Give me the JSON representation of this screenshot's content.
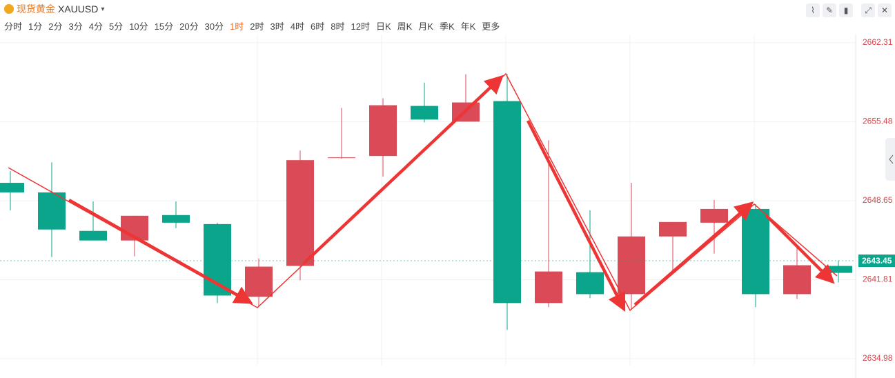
{
  "header": {
    "title": "现货黄金",
    "symbol": "XAUUSD",
    "intervals": [
      {
        "label": "分时"
      },
      {
        "label": "1分"
      },
      {
        "label": "2分"
      },
      {
        "label": "3分"
      },
      {
        "label": "4分"
      },
      {
        "label": "5分"
      },
      {
        "label": "10分"
      },
      {
        "label": "15分"
      },
      {
        "label": "20分"
      },
      {
        "label": "30分"
      },
      {
        "label": "1时",
        "active": true
      },
      {
        "label": "2时"
      },
      {
        "label": "3时"
      },
      {
        "label": "4时"
      },
      {
        "label": "6时"
      },
      {
        "label": "8时"
      },
      {
        "label": "12时"
      },
      {
        "label": "日K"
      },
      {
        "label": "周K"
      },
      {
        "label": "月K"
      },
      {
        "label": "季K"
      },
      {
        "label": "年K"
      },
      {
        "label": "更多"
      }
    ]
  },
  "chart_data": {
    "type": "candlestick",
    "open": [
      2650.19,
      2649.36,
      2646.03,
      2645.2,
      2647.4,
      2646.62,
      2640.33,
      2643.0,
      2652.33,
      2652.51,
      2656.84,
      2655.48,
      2657.26,
      2639.79,
      2642.46,
      2640.56,
      2645.55,
      2646.74,
      2647.93,
      2640.56,
      2643.0
    ],
    "high": [
      2651.2,
      2651.97,
      2648.58,
      2647.34,
      2648.58,
      2646.74,
      2643.65,
      2652.98,
      2656.67,
      2657.5,
      2658.86,
      2659.58,
      2659.58,
      2653.87,
      2647.81,
      2650.19,
      2646.8,
      2648.7,
      2648.35,
      2644.66,
      2643.47
    ],
    "low": [
      2647.81,
      2643.77,
      2645.2,
      2643.83,
      2646.27,
      2639.79,
      2639.43,
      2641.75,
      2652.27,
      2650.72,
      2655.42,
      2655.48,
      2637.47,
      2639.43,
      2640.21,
      2639.2,
      2642.64,
      2644.07,
      2639.43,
      2640.15,
      2641.57
    ],
    "close": [
      2649.36,
      2646.15,
      2645.2,
      2647.34,
      2646.74,
      2640.44,
      2642.94,
      2652.15,
      2652.39,
      2656.9,
      2655.66,
      2657.14,
      2639.79,
      2642.52,
      2640.56,
      2645.55,
      2646.8,
      2647.93,
      2640.56,
      2643.06,
      2642.4
    ],
    "up_color": "#da4b57",
    "down_color": "#0aa58a",
    "current_price": 2643.45,
    "ylim": [
      2634.5,
      2662.9
    ],
    "yticks": [
      2662.31,
      2655.48,
      2648.65,
      2641.81,
      2634.98
    ],
    "grid": true
  }
}
